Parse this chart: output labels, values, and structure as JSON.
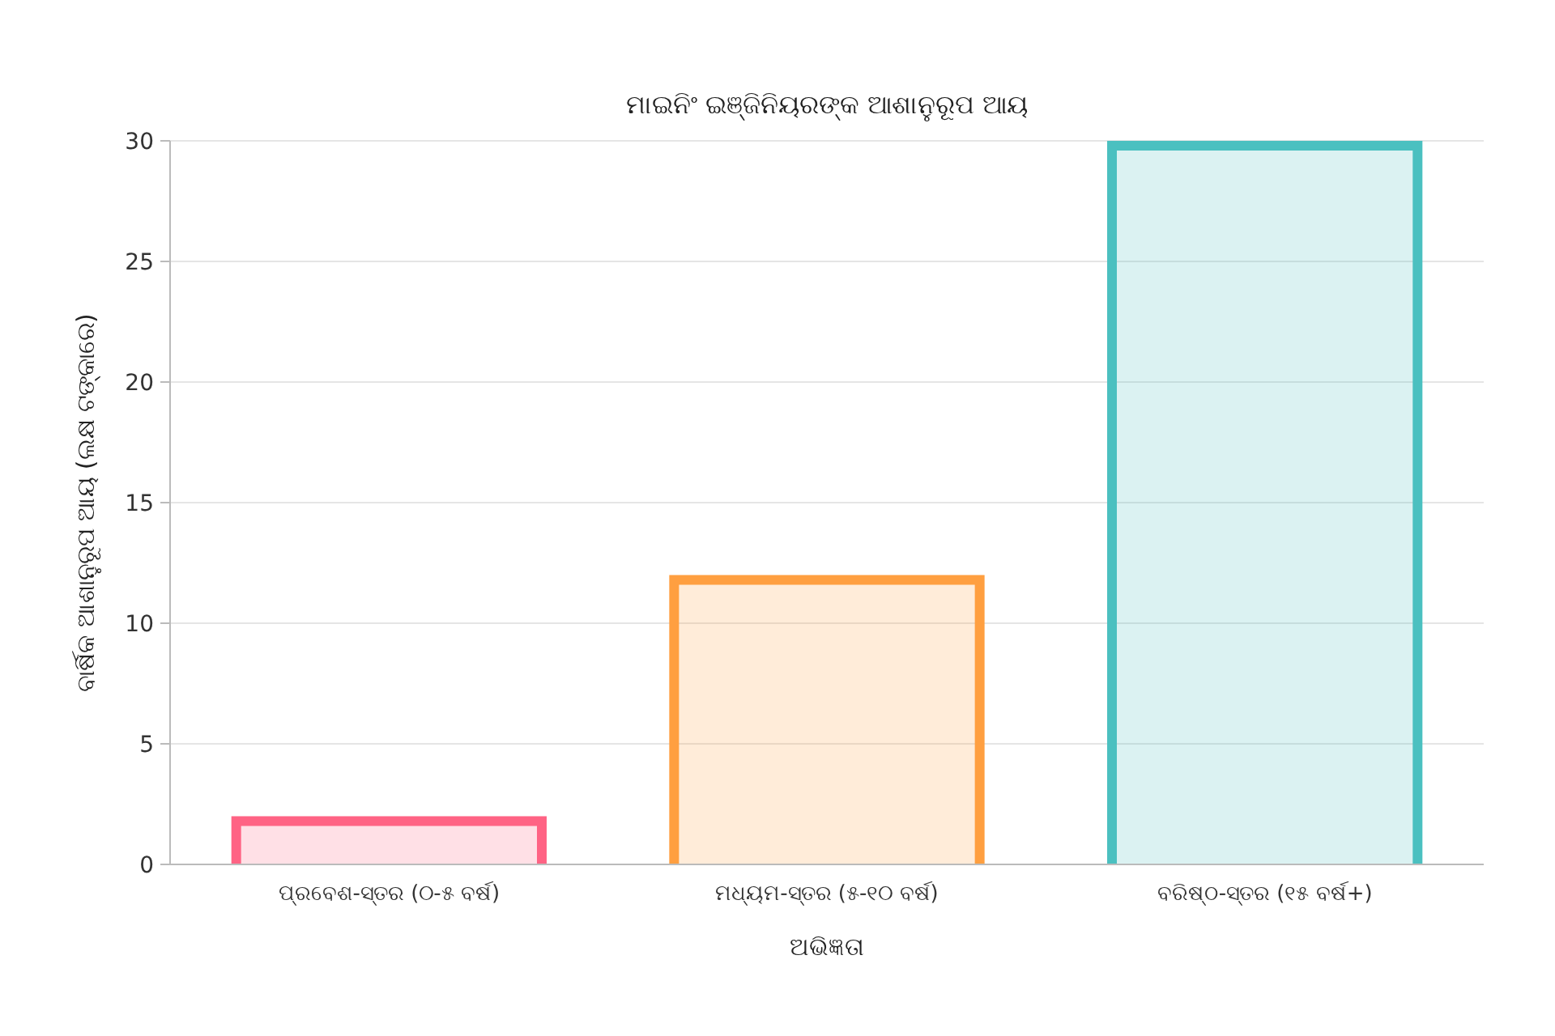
{
  "chart_data": {
    "type": "bar",
    "title": "ମାଇନିଂ ଇଞ୍ଜିନିୟରଙ୍କ ଆଶାନୁରୂପ ଆୟ",
    "xlabel": "ଅଭିଜ୍ଞତା",
    "ylabel": "ବାର୍ଷିକ ଆଶାନୁରୂପ ଆୟ (ଲକ୍ଷ ଟଙ୍କାରେ)",
    "categories": [
      "ପ୍ରବେଶ-ସ୍ତର (୦-୫ ବର୍ଷ)",
      "ମଧ୍ୟମ-ସ୍ତର (୫-୧୦ ବର୍ଷ)",
      "ବରିଷ୍ଠ-ସ୍ତର (୧୫ ବର୍ଷ+)"
    ],
    "values": [
      2,
      12,
      30
    ],
    "colors": [
      "#ff6384",
      "#ff9f40",
      "#4bc0c0"
    ],
    "ylim": [
      0,
      30
    ],
    "yticks": [
      0,
      5,
      10,
      15,
      20,
      25,
      30
    ],
    "grid": "y"
  }
}
